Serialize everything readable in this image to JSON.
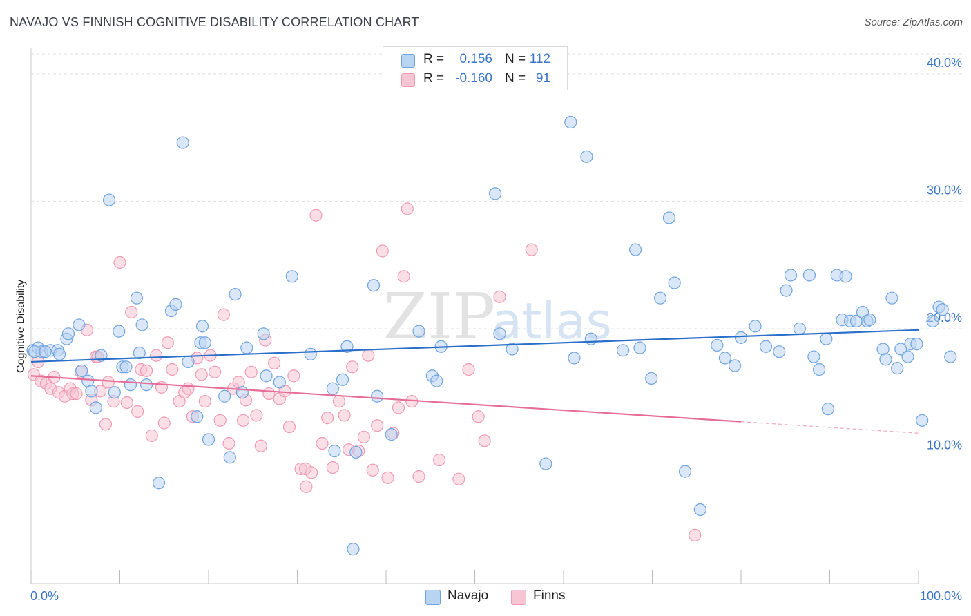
{
  "title": "NAVAJO VS FINNISH COGNITIVE DISABILITY CORRELATION CHART",
  "source": "Source: ZipAtlas.com",
  "watermark": "ZIPatlas",
  "colors": {
    "navajo_fill": "#b9d3f2",
    "navajo_stroke": "#6fa3de",
    "navajo_line": "#2a6fc9",
    "finns_fill": "#f7c5d4",
    "finns_stroke": "#ee9ab4",
    "finns_line": "#e66d97",
    "tick_text": "#3a75c9",
    "grid": "#dddddd"
  },
  "legend": {
    "rows": [
      {
        "series": "Navajo",
        "r_label": "R =",
        "r_value": "0.156",
        "n_label": "N =",
        "n_value": "112"
      },
      {
        "series": "Finns",
        "r_label": "R =",
        "r_value": "-0.160",
        "n_label": "N =",
        "n_value": "91"
      }
    ]
  },
  "bottom_legend": [
    "Navajo",
    "Finns"
  ],
  "chart_data": {
    "type": "scatter",
    "title": "NAVAJO VS FINNISH COGNITIVE DISABILITY CORRELATION CHART",
    "xlabel": "",
    "ylabel": "Cognitive Disability",
    "xlim": [
      0,
      100
    ],
    "ylim": [
      0,
      42
    ],
    "x_tick_labels": [
      "0.0%",
      "100.0%"
    ],
    "y_ticks": [
      10,
      20,
      30,
      40
    ],
    "y_tick_labels": [
      "10.0%",
      "20.0%",
      "30.0%",
      "40.0%"
    ],
    "grid": true,
    "legend_position": "top-center",
    "series": [
      {
        "name": "Navajo",
        "trend": {
          "x": [
            0,
            100
          ],
          "y": [
            17.4,
            19.9
          ]
        },
        "points": [
          [
            0.2,
            18.3
          ],
          [
            0.8,
            18.5
          ],
          [
            1.2,
            18.2
          ],
          [
            2.2,
            18.3
          ],
          [
            3.0,
            18.3
          ],
          [
            3.2,
            18.0
          ],
          [
            4.0,
            19.2
          ],
          [
            4.2,
            19.6
          ],
          [
            5.4,
            20.3
          ],
          [
            5.7,
            16.7
          ],
          [
            6.4,
            15.9
          ],
          [
            6.8,
            15.1
          ],
          [
            7.3,
            13.8
          ],
          [
            7.9,
            17.9
          ],
          [
            8.8,
            30.1
          ],
          [
            9.4,
            15.0
          ],
          [
            9.9,
            19.8
          ],
          [
            10.3,
            17.0
          ],
          [
            10.7,
            17.0
          ],
          [
            11.2,
            15.6
          ],
          [
            11.9,
            22.4
          ],
          [
            12.2,
            18.1
          ],
          [
            12.5,
            20.3
          ],
          [
            13.0,
            15.6
          ],
          [
            14.4,
            7.9
          ],
          [
            15.8,
            21.4
          ],
          [
            16.3,
            21.9
          ],
          [
            17.1,
            34.6
          ],
          [
            17.7,
            17.4
          ],
          [
            18.7,
            13.1
          ],
          [
            19.1,
            18.9
          ],
          [
            19.3,
            20.2
          ],
          [
            19.6,
            18.9
          ],
          [
            20.0,
            11.3
          ],
          [
            21.8,
            14.7
          ],
          [
            22.4,
            9.9
          ],
          [
            23.0,
            22.7
          ],
          [
            23.8,
            15.0
          ],
          [
            24.3,
            18.5
          ],
          [
            26.2,
            19.6
          ],
          [
            26.5,
            16.3
          ],
          [
            28.0,
            15.8
          ],
          [
            29.4,
            24.1
          ],
          [
            31.5,
            18.0
          ],
          [
            34.0,
            15.3
          ],
          [
            34.2,
            10.4
          ],
          [
            35.1,
            16.0
          ],
          [
            35.6,
            18.6
          ],
          [
            36.3,
            2.7
          ],
          [
            36.6,
            10.3
          ],
          [
            38.6,
            23.4
          ],
          [
            39.0,
            14.7
          ],
          [
            40.6,
            11.7
          ],
          [
            43.7,
            19.8
          ],
          [
            45.2,
            16.3
          ],
          [
            45.7,
            15.9
          ],
          [
            46.2,
            18.6
          ],
          [
            52.3,
            30.6
          ],
          [
            52.8,
            19.6
          ],
          [
            54.2,
            18.4
          ],
          [
            58.0,
            9.4
          ],
          [
            60.8,
            36.2
          ],
          [
            61.2,
            17.7
          ],
          [
            62.6,
            33.5
          ],
          [
            63.1,
            19.2
          ],
          [
            66.7,
            18.3
          ],
          [
            68.1,
            26.2
          ],
          [
            68.6,
            18.5
          ],
          [
            69.9,
            16.1
          ],
          [
            70.9,
            22.4
          ],
          [
            71.9,
            28.7
          ],
          [
            72.5,
            23.6
          ],
          [
            73.7,
            8.8
          ],
          [
            75.4,
            5.8
          ],
          [
            77.3,
            18.7
          ],
          [
            78.2,
            17.7
          ],
          [
            79.3,
            17.1
          ],
          [
            80.0,
            19.3
          ],
          [
            81.6,
            20.2
          ],
          [
            82.8,
            18.6
          ],
          [
            84.3,
            18.2
          ],
          [
            85.1,
            23.0
          ],
          [
            85.6,
            24.2
          ],
          [
            86.6,
            20.0
          ],
          [
            87.7,
            24.2
          ],
          [
            88.2,
            17.8
          ],
          [
            88.8,
            16.8
          ],
          [
            89.6,
            19.2
          ],
          [
            89.8,
            13.7
          ],
          [
            90.8,
            24.2
          ],
          [
            91.4,
            20.7
          ],
          [
            91.8,
            24.1
          ],
          [
            92.3,
            20.6
          ],
          [
            93.0,
            20.6
          ],
          [
            93.7,
            21.3
          ],
          [
            94.2,
            20.6
          ],
          [
            94.5,
            20.7
          ],
          [
            96.0,
            18.4
          ],
          [
            96.3,
            17.6
          ],
          [
            97.0,
            22.4
          ],
          [
            97.6,
            16.9
          ],
          [
            98.0,
            18.4
          ],
          [
            98.8,
            17.8
          ],
          [
            99.1,
            18.8
          ],
          [
            99.8,
            18.8
          ],
          [
            100.4,
            12.8
          ],
          [
            101.6,
            20.6
          ],
          [
            102.3,
            21.7
          ],
          [
            102.7,
            21.5
          ],
          [
            103.6,
            17.8
          ],
          [
            0.4,
            18.2
          ],
          [
            1.6,
            18.2
          ]
        ]
      },
      {
        "name": "Finns",
        "trend": {
          "x": [
            0,
            80
          ],
          "y": [
            16.3,
            12.7
          ]
        },
        "trend_dashed": {
          "x": [
            80,
            100
          ],
          "y": [
            12.7,
            11.8
          ]
        },
        "points": [
          [
            0.3,
            16.4
          ],
          [
            0.8,
            17.4
          ],
          [
            1.1,
            15.9
          ],
          [
            1.7,
            15.7
          ],
          [
            2.2,
            15.3
          ],
          [
            2.6,
            16.2
          ],
          [
            3.1,
            15.0
          ],
          [
            3.8,
            14.7
          ],
          [
            4.4,
            15.3
          ],
          [
            4.7,
            14.9
          ],
          [
            5.1,
            14.9
          ],
          [
            5.6,
            16.6
          ],
          [
            6.3,
            19.9
          ],
          [
            6.8,
            14.4
          ],
          [
            7.3,
            17.8
          ],
          [
            7.8,
            15.1
          ],
          [
            8.4,
            12.5
          ],
          [
            8.7,
            15.8
          ],
          [
            9.3,
            14.3
          ],
          [
            10.0,
            25.2
          ],
          [
            10.8,
            14.2
          ],
          [
            11.3,
            21.3
          ],
          [
            12.0,
            13.5
          ],
          [
            12.4,
            16.8
          ],
          [
            13.0,
            16.7
          ],
          [
            13.6,
            11.6
          ],
          [
            14.1,
            17.9
          ],
          [
            14.7,
            15.4
          ],
          [
            15.0,
            12.6
          ],
          [
            15.4,
            18.9
          ],
          [
            15.9,
            16.8
          ],
          [
            16.7,
            14.3
          ],
          [
            17.3,
            15.0
          ],
          [
            17.7,
            15.3
          ],
          [
            18.2,
            13.1
          ],
          [
            18.7,
            17.7
          ],
          [
            19.2,
            16.4
          ],
          [
            19.6,
            14.3
          ],
          [
            20.2,
            17.9
          ],
          [
            20.7,
            16.6
          ],
          [
            21.3,
            12.8
          ],
          [
            21.7,
            21.1
          ],
          [
            22.3,
            11.0
          ],
          [
            22.8,
            15.3
          ],
          [
            23.4,
            15.8
          ],
          [
            23.9,
            12.8
          ],
          [
            24.2,
            14.4
          ],
          [
            24.8,
            16.6
          ],
          [
            25.4,
            13.2
          ],
          [
            25.9,
            10.8
          ],
          [
            26.4,
            19.1
          ],
          [
            26.8,
            14.9
          ],
          [
            27.4,
            17.3
          ],
          [
            28.0,
            14.5
          ],
          [
            28.6,
            15.1
          ],
          [
            29.1,
            12.3
          ],
          [
            29.6,
            16.3
          ],
          [
            30.4,
            9.0
          ],
          [
            31.0,
            7.6
          ],
          [
            31.6,
            8.7
          ],
          [
            32.1,
            28.9
          ],
          [
            32.8,
            11.0
          ],
          [
            33.4,
            13.0
          ],
          [
            34.0,
            9.1
          ],
          [
            34.7,
            14.3
          ],
          [
            35.3,
            13.2
          ],
          [
            35.8,
            10.5
          ],
          [
            36.2,
            17.0
          ],
          [
            36.9,
            10.4
          ],
          [
            37.5,
            11.5
          ],
          [
            38.0,
            17.9
          ],
          [
            38.5,
            8.9
          ],
          [
            39.0,
            12.4
          ],
          [
            39.6,
            26.1
          ],
          [
            40.2,
            8.3
          ],
          [
            40.8,
            11.8
          ],
          [
            41.4,
            13.8
          ],
          [
            42.0,
            24.1
          ],
          [
            42.4,
            29.4
          ],
          [
            42.9,
            14.3
          ],
          [
            43.7,
            8.4
          ],
          [
            46.0,
            9.7
          ],
          [
            48.2,
            8.2
          ],
          [
            49.3,
            16.8
          ],
          [
            50.4,
            13.1
          ],
          [
            51.1,
            11.2
          ],
          [
            52.8,
            22.5
          ],
          [
            56.4,
            26.2
          ],
          [
            74.8,
            3.8
          ],
          [
            7.5,
            17.8
          ],
          [
            30.9,
            9.0
          ]
        ]
      }
    ]
  }
}
